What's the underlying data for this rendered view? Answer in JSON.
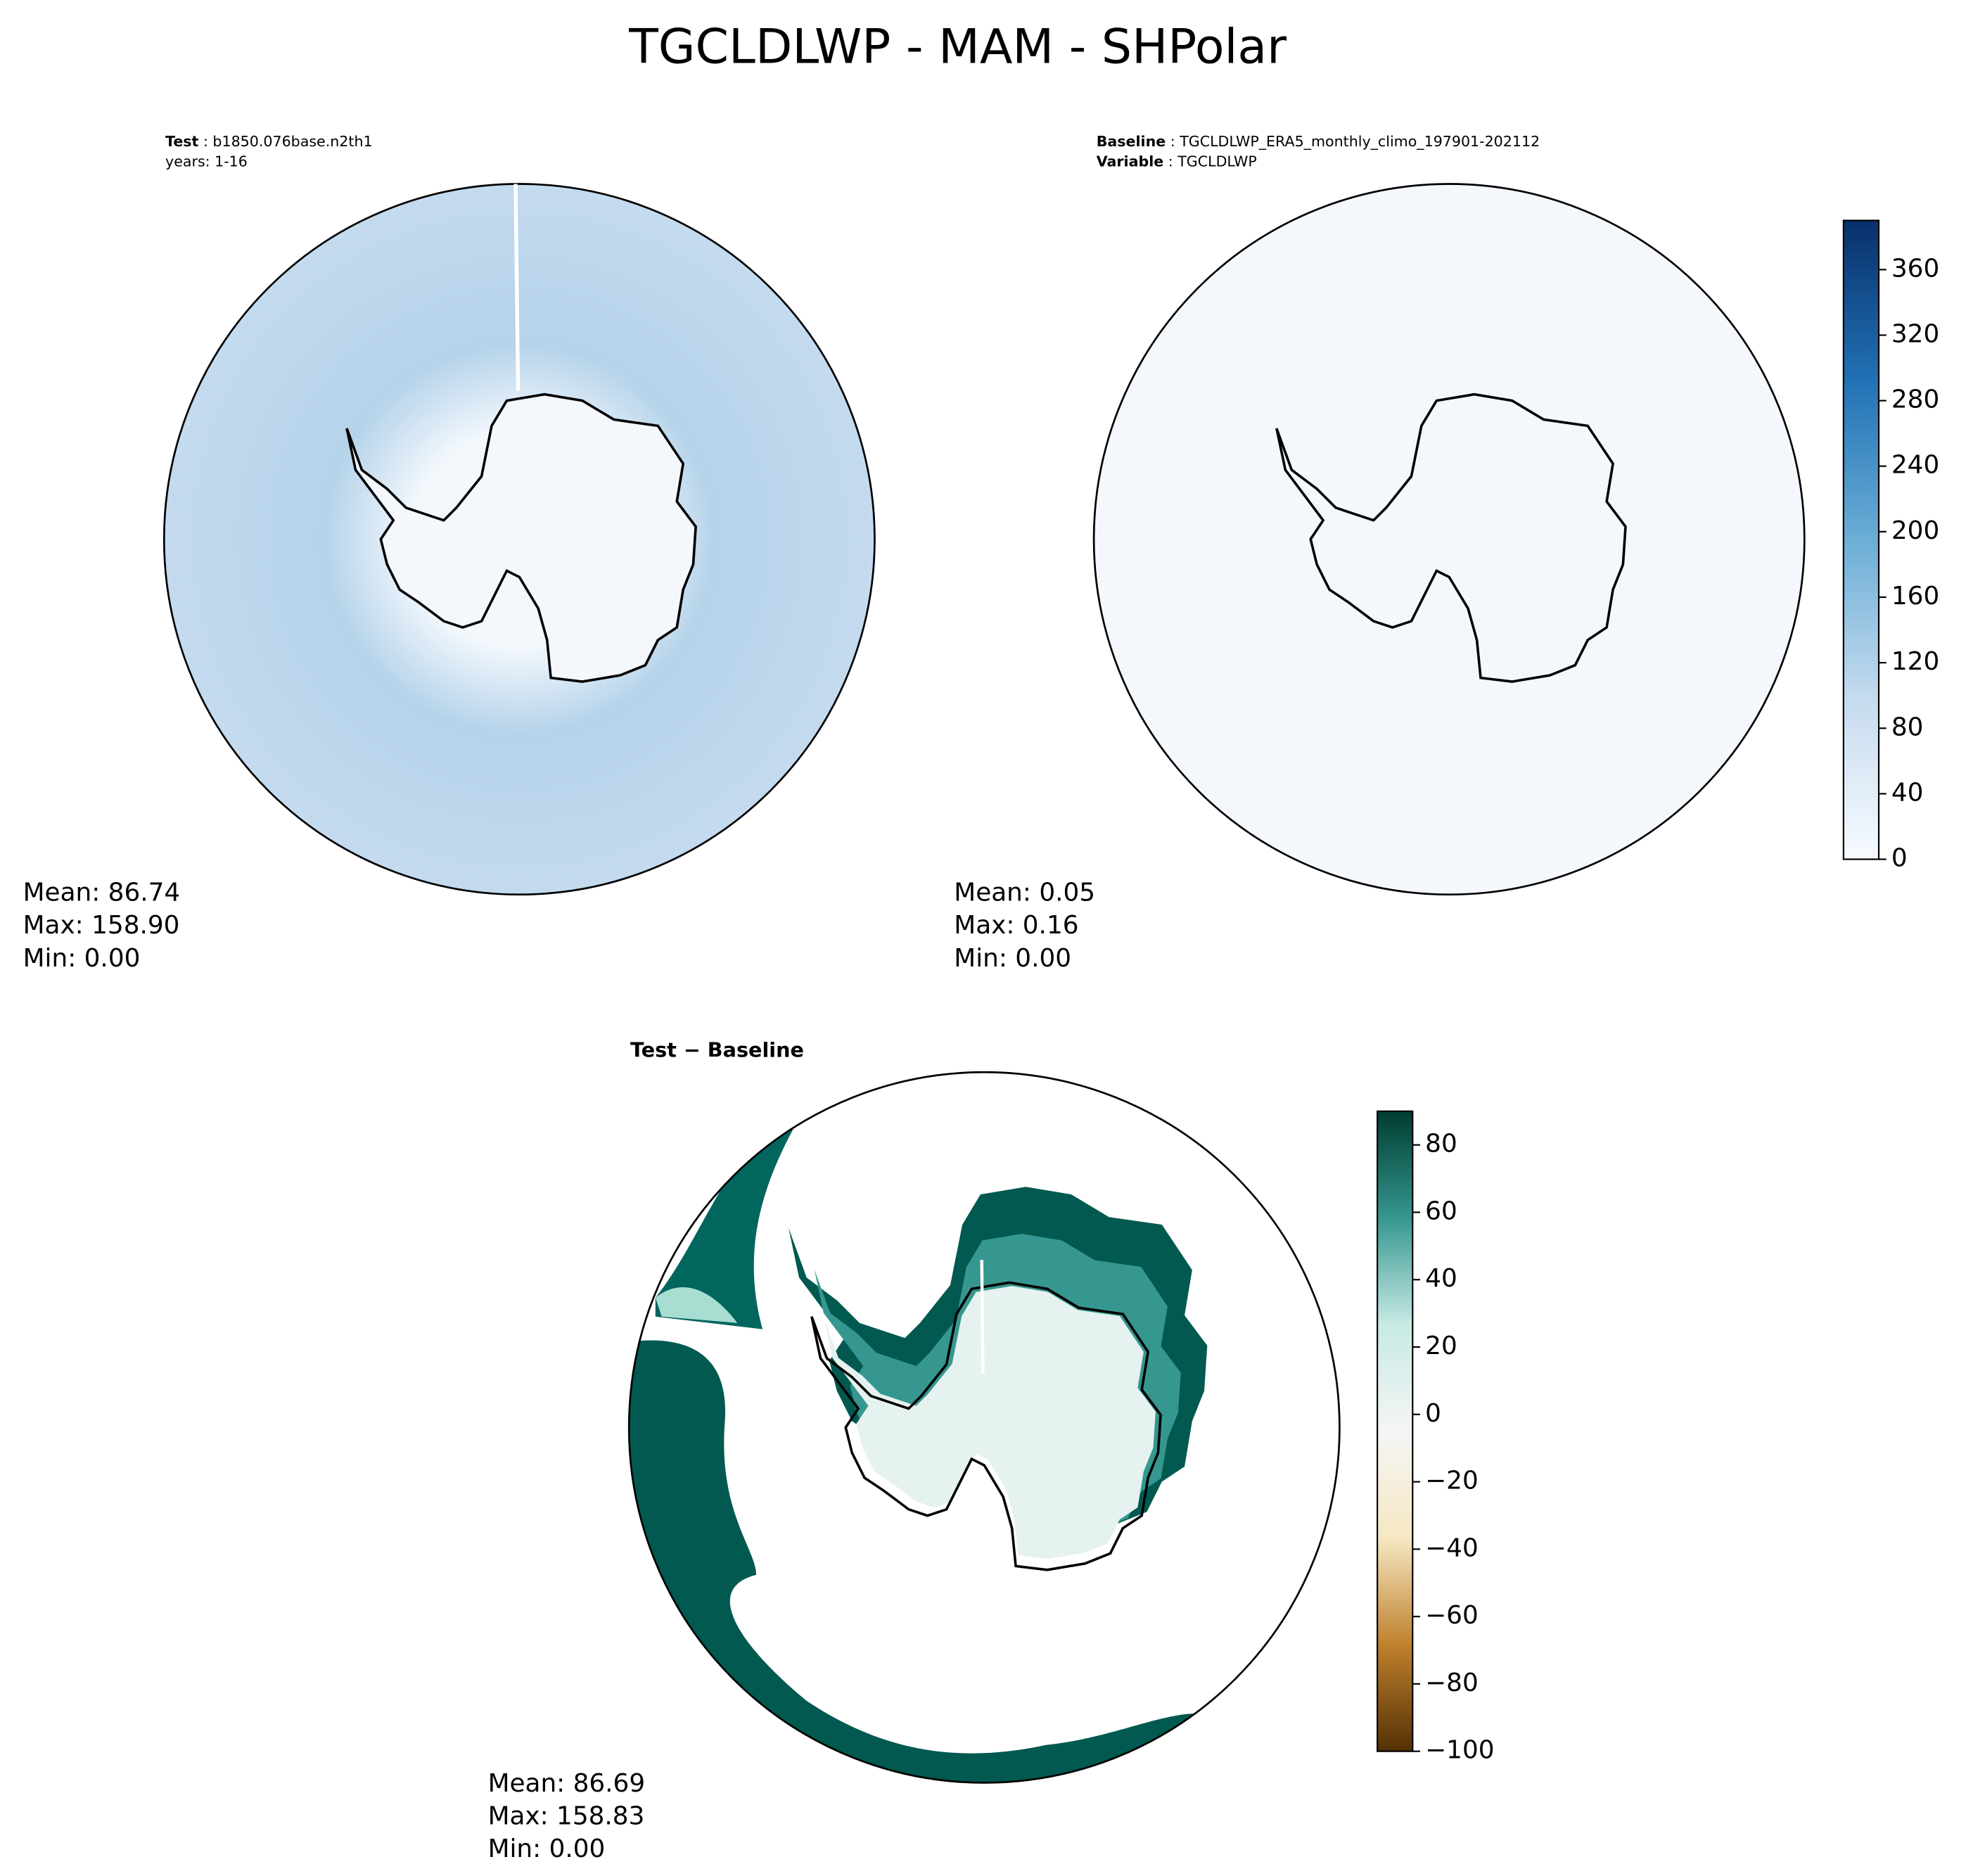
{
  "title": "TGCLDLWP - MAM - SHPolar",
  "panels": [
    {
      "label_key": "Test",
      "label_value": "b1850.076base.n2th1",
      "label_line2": "years: 1-16",
      "stats": [
        "Mean: 86.74",
        "Max: 158.90",
        "Min:  0.00"
      ]
    },
    {
      "label_key": "Baseline",
      "label_value": "TGCLDLWP_ERA5_monthly_climo_197901-202112",
      "label_line2_key": "Variable",
      "label_line2_value": "TGCLDLWP",
      "stats": [
        "Mean:  0.05",
        "Max:  0.16",
        "Min:  0.00"
      ]
    },
    {
      "label_key": "Test − Baseline",
      "stats": [
        "Mean: 86.69",
        "Max: 158.83",
        "Min:  0.00"
      ]
    }
  ],
  "colorbars": [
    {
      "lim": [
        0,
        390
      ],
      "ticks": [
        0,
        40,
        80,
        120,
        160,
        200,
        240,
        280,
        320,
        360
      ],
      "colors": [
        "#f7fbff",
        "#c6dbef",
        "#6baed6",
        "#2171b5",
        "#08306b"
      ]
    },
    {
      "lim": [
        -100,
        90
      ],
      "ticks": [
        {
          "value": -100,
          "label": "−100"
        },
        {
          "value": -80,
          "label": "−80"
        },
        {
          "value": -60,
          "label": "−60"
        },
        {
          "value": -40,
          "label": "−40"
        },
        {
          "value": -20,
          "label": "−20"
        },
        0,
        20,
        40,
        60,
        80
      ],
      "colors": [
        "#543005",
        "#bf812d",
        "#f6e8c3",
        "#f5f5f5",
        "#c7eae5",
        "#35978f",
        "#003c30"
      ]
    }
  ]
}
